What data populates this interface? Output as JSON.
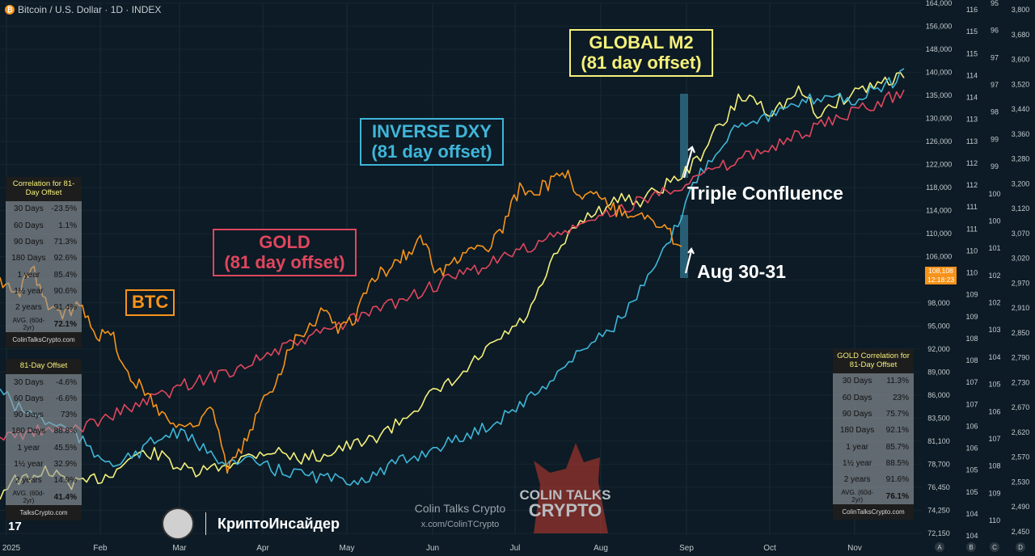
{
  "header": {
    "icon": "bitcoin-icon",
    "btc_symbol": "₿",
    "title": "Bitcoin / U.S. Dollar · 1D · INDEX"
  },
  "labels": {
    "m2_line1": "GLOBAL M2",
    "m2_line2": "(81 day offset)",
    "dxy_line1": "INVERSE DXY",
    "dxy_line2": "(81 day offset)",
    "gold_line1": "GOLD",
    "gold_line2": "(81 day offset)",
    "btc": "BTC",
    "triple": "Triple Confluence",
    "aug": "Aug 30-31"
  },
  "price_tag": {
    "value": "108,108",
    "time": "12:18:23"
  },
  "colors": {
    "m2": "#f5f07a",
    "dxy": "#3fb6d9",
    "gold": "#e0465e",
    "btc": "#f7931a",
    "background": "#0c1b25",
    "highlight": "#2e6a82"
  },
  "table_m2": {
    "header": "Correlation for 81-Day Offset",
    "rows": [
      {
        "label": "30 Days",
        "value": "-23.5%"
      },
      {
        "label": "60 Days",
        "value": "1.1%"
      },
      {
        "label": "90 Days",
        "value": "71.3%"
      },
      {
        "label": "180 Days",
        "value": "92.6%"
      },
      {
        "label": "1 year",
        "value": "85.4%"
      },
      {
        "label": "1½ year",
        "value": "90.6%"
      },
      {
        "label": "2 years",
        "value": "91.4%"
      }
    ],
    "avg_label": "AVG. (60d-2yr)",
    "avg_value": "72.1%",
    "footer": "ColinTalksCrypto.com"
  },
  "table_dxy": {
    "header": "81-Day Offset",
    "rows": [
      {
        "label": "30 Days",
        "value": "-4.6%"
      },
      {
        "label": "60 Days",
        "value": "-6.6%"
      },
      {
        "label": "90 Days",
        "value": "73%"
      },
      {
        "label": "180 Days",
        "value": "88.8%"
      },
      {
        "label": "1 year",
        "value": "45.5%"
      },
      {
        "label": "1½ year",
        "value": "32.9%"
      },
      {
        "label": "2 years",
        "value": "14.9%"
      }
    ],
    "avg_label": "AVG. (60d-2yr)",
    "avg_value": "41.4%",
    "footer": "TalksCrypto.com"
  },
  "table_gold": {
    "header": "GOLD Correlation for 81-Day Offset",
    "rows": [
      {
        "label": "30 Days",
        "value": "11.3%"
      },
      {
        "label": "60 Days",
        "value": "23%"
      },
      {
        "label": "90 Days",
        "value": "75.7%"
      },
      {
        "label": "180 Days",
        "value": "92.1%"
      },
      {
        "label": "1 year",
        "value": "85.7%"
      },
      {
        "label": "1½ year",
        "value": "88.5%"
      },
      {
        "label": "2 years",
        "value": "91.6%"
      }
    ],
    "avg_label": "AVG. (60d-2yr)",
    "avg_value": "76.1%",
    "footer": "ColinTalksCrypto.com"
  },
  "watermark": {
    "logo_line1": "COLIN TALKS",
    "logo_line2": "CRYPTO",
    "name": "Colin Talks Crypto",
    "handle": "x.com/ColinTCrypto"
  },
  "footer": {
    "brand": "КриптоИнсайдер",
    "tv_logo": "17"
  },
  "chart_data": {
    "type": "line",
    "x_ticks": [
      "2025",
      "Feb",
      "Mar",
      "Apr",
      "May",
      "Jun",
      "Jul",
      "Aug",
      "Sep",
      "Oct",
      "Nov"
    ],
    "y_ticks_btc": [
      "164,000",
      "156,000",
      "148,000",
      "140,000",
      "135,000",
      "130,000",
      "126,000",
      "122,000",
      "118,000",
      "114,000",
      "110,000",
      "106,000",
      "102,000",
      "98,000",
      "95,000",
      "92,000",
      "89,000",
      "86,000",
      "83,500",
      "81,100",
      "78,700",
      "76,450",
      "74,250",
      "72,150"
    ],
    "y_ticks_m2": [
      "116",
      "115",
      "115",
      "114",
      "114",
      "113",
      "113",
      "112",
      "112",
      "111",
      "111",
      "110",
      "110",
      "109",
      "109",
      "108",
      "108",
      "107",
      "107",
      "106",
      "106",
      "105",
      "105",
      "104",
      "104"
    ],
    "y_ticks_dxy": [
      "95",
      "96",
      "97",
      "97",
      "98",
      "99",
      "99",
      "100",
      "100",
      "101",
      "102",
      "102",
      "103",
      "104",
      "105",
      "106",
      "107",
      "108",
      "109",
      "110"
    ],
    "y_ticks_gold": [
      "3,800",
      "3,680",
      "3,600",
      "3,520",
      "3,440",
      "3,360",
      "3,280",
      "3,200",
      "3,120",
      "3,070",
      "3,020",
      "2,970",
      "2,910",
      "2,850",
      "2,790",
      "2,730",
      "2,670",
      "2,620",
      "2,570",
      "2,530",
      "2,490",
      "2,450"
    ],
    "axis_letters": [
      "A",
      "B",
      "C",
      "D"
    ],
    "series": [
      {
        "name": "GLOBAL M2",
        "color": "#f5f07a",
        "values": [
          70,
          92,
          104,
          108,
          110,
          110,
          100,
          118,
          130,
          128,
          125,
          118,
          114,
          108,
          100,
          101,
          98,
          102,
          106,
          112,
          112,
          118,
          125,
          129,
          138,
          155,
          160,
          163,
          166,
          168,
          170,
          166,
          161,
          160,
          148,
          140,
          135,
          130,
          124,
          122,
          128,
          132,
          132,
          136,
          138,
          145,
          150,
          155,
          158,
          161,
          165,
          170,
          173,
          173,
          175,
          174,
          170,
          166,
          160,
          160,
          156,
          160,
          162,
          164,
          164,
          172,
          175,
          180,
          182,
          185,
          188,
          190,
          190,
          198,
          205,
          210,
          220,
          226,
          230,
          240,
          253,
          260,
          276,
          280,
          288,
          300,
          305,
          310,
          322,
          330,
          336,
          340,
          350,
          368,
          382,
          390,
          398,
          412,
          425,
          432,
          442,
          450,
          460,
          468,
          480,
          498,
          520,
          545,
          570,
          600,
          624,
          640,
          660,
          668,
          690,
          700,
          715,
          720,
          730,
          725,
          740,
          745,
          750,
          752,
          760,
          755,
          745,
          750,
          760,
          765,
          775,
          780,
          788,
          795,
          800,
          810,
          820,
          830,
          842,
          860,
          880,
          900,
          915,
          920,
          940,
          960,
          980,
          985,
          988,
          990,
          975,
          965,
          960,
          955,
          962,
          970,
          978,
          990,
          1000,
          995,
          980,
          960,
          948,
          955,
          962,
          970,
          980,
          985,
          990,
          1000,
          1005,
          1010,
          1012,
          1015,
          1020,
          1025,
          1030,
          1032,
          1035,
          1040
        ]
      },
      {
        "name": "INVERSE DXY",
        "color": "#3fb6d9",
        "values": [
          320,
          300,
          280,
          270,
          265,
          258,
          250,
          240,
          238,
          230,
          225,
          215,
          200,
          180,
          165,
          160,
          158,
          150,
          148,
          156,
          168,
          175,
          190,
          196,
          205,
          210,
          218,
          210,
          200,
          196,
          180,
          165,
          160,
          158,
          150,
          148,
          145,
          150,
          148,
          140,
          135,
          130,
          128,
          126,
          124,
          120,
          118,
          115,
          112,
          110,
          108,
          106,
          108,
          110,
          112,
          118,
          122,
          130,
          140,
          148,
          152,
          160,
          165,
          170,
          180,
          186,
          190,
          196,
          200,
          210,
          215,
          222,
          230,
          240,
          246,
          260,
          270,
          280,
          292,
          300,
          316,
          330,
          345,
          360,
          372,
          386,
          400,
          420,
          430,
          440,
          450,
          462,
          480,
          500,
          520,
          545,
          566,
          590,
          620,
          650,
          680,
          720,
          760,
          790,
          820,
          840,
          860,
          880,
          900,
          920,
          930,
          935,
          940,
          942,
          944,
          950,
          955,
          960,
          965,
          975,
          980,
          985,
          990,
          995,
          992,
          985,
          980,
          975,
          990,
          1000,
          1005,
          1010,
          1020,
          1030,
          1040
        ]
      },
      {
        "name": "GOLD",
        "color": "#e0465e",
        "values": [
          205,
          210,
          212,
          216,
          222,
          218,
          220,
          226,
          232,
          240,
          250,
          262,
          270,
          278,
          290,
          300,
          310,
          320,
          330,
          338,
          344,
          350,
          360,
          370,
          380,
          392,
          400,
          410,
          420,
          430,
          440,
          450,
          460,
          470,
          480,
          490,
          500,
          510,
          520,
          530,
          540,
          550,
          560,
          570,
          580,
          590,
          600,
          610,
          620,
          630,
          640,
          650,
          660,
          670,
          680,
          690,
          700,
          710,
          720,
          730,
          740,
          750,
          760,
          770,
          780,
          790,
          800,
          810,
          820,
          830,
          840,
          850,
          860,
          870,
          880,
          890,
          900,
          910,
          920,
          930,
          940,
          950,
          960,
          970,
          980,
          990,
          1000
        ]
      },
      {
        "name": "BTC",
        "color": "#f7931a",
        "values": [
          102000,
          99000,
          104000,
          97000,
          96500,
          98000,
          94000,
          93500,
          88000,
          86500,
          84000,
          82500,
          83000,
          85000,
          78000,
          80500,
          84500,
          88000,
          93000,
          95000,
          97000,
          94500,
          96500,
          102500,
          104000,
          106500,
          109000,
          103000,
          105000,
          108500,
          107000,
          111000,
          118000,
          117500,
          119000,
          120000,
          116000,
          117000,
          114000,
          113500,
          112500,
          110500,
          108108
        ]
      }
    ]
  }
}
